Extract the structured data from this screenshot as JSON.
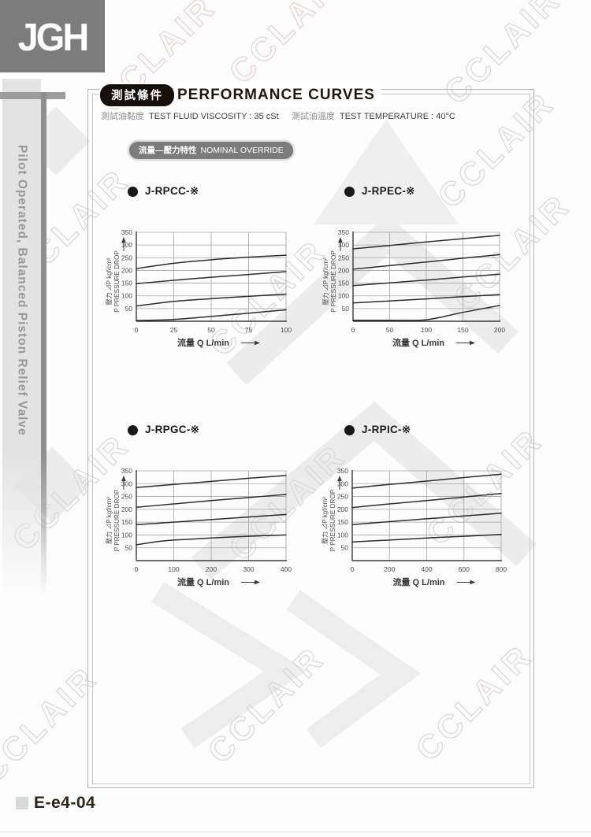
{
  "page": {
    "logo_text": "JGH",
    "sidebar_title": "Pilot Operated, Balanced Piston Relief Valve",
    "page_code": "E-e4-04",
    "watermark_text": "CCLAIR"
  },
  "header": {
    "badge": "測試條件",
    "title": "PERFORMANCE CURVES",
    "condition_left_zh": "測試油黏度",
    "condition_left_en": "TEST FLUID VISCOSITY : 35 cSt",
    "condition_right_zh": "測試油溫度",
    "condition_right_en": "TEST TEMPERATURE : 40°C",
    "section_badge_zh": "流量—壓力特性",
    "section_badge_en": "NOMINAL OVERRIDE"
  },
  "axes": {
    "xlabel": "流量 Q L/min",
    "ylabel_line1": "壓力 ⊿P kgf/cm²",
    "ylabel_line2": "P PRESSURE DROP"
  },
  "colors": {
    "grid": "#a3a3a3",
    "axis": "#3a3a3a",
    "curve": "#2c2c2c",
    "tick": "#4c4c4c",
    "axis_label": "#3a3a3a"
  },
  "chart_data": [
    {
      "type": "line",
      "title": "J-RPCC-※",
      "xlabel": "流量 Q L/min",
      "ylabel1": "壓力 ⊿P kgf/cm²",
      "ylabel2": "P PRESSURE DROP",
      "xlim": [
        0,
        100
      ],
      "ylim": [
        0,
        350
      ],
      "x_ticks": [
        0,
        25,
        50,
        75,
        100
      ],
      "y_ticks": [
        50,
        100,
        150,
        200,
        250,
        300,
        350
      ],
      "series": [
        {
          "name": "curve-1",
          "x": [
            0,
            25,
            50,
            75,
            100
          ],
          "y": [
            207,
            228,
            242,
            252,
            260
          ]
        },
        {
          "name": "curve-2",
          "x": [
            0,
            25,
            50,
            75,
            100
          ],
          "y": [
            148,
            161,
            173,
            184,
            195
          ]
        },
        {
          "name": "curve-3",
          "x": [
            0,
            25,
            50,
            75,
            100
          ],
          "y": [
            60,
            78,
            89,
            98,
            107
          ]
        },
        {
          "name": "curve-4",
          "x": [
            0,
            25,
            50,
            75,
            100
          ],
          "y": [
            3,
            7,
            19,
            32,
            45
          ]
        }
      ]
    },
    {
      "type": "line",
      "title": "J-RPEC-※",
      "xlabel": "流量 Q L/min",
      "ylabel1": "壓力 ⊿P kgf/cm²",
      "ylabel2": "P PRESSURE DROP",
      "xlim": [
        0,
        200
      ],
      "ylim": [
        0,
        350
      ],
      "x_ticks": [
        0,
        50,
        100,
        150,
        200
      ],
      "y_ticks": [
        50,
        100,
        150,
        200,
        250,
        300,
        350
      ],
      "series": [
        {
          "name": "curve-1",
          "x": [
            0,
            50,
            100,
            150,
            200
          ],
          "y": [
            285,
            298,
            312,
            325,
            338
          ]
        },
        {
          "name": "curve-2",
          "x": [
            0,
            50,
            100,
            150,
            200
          ],
          "y": [
            205,
            219,
            233,
            248,
            262
          ]
        },
        {
          "name": "curve-3",
          "x": [
            0,
            50,
            100,
            150,
            200
          ],
          "y": [
            140,
            151,
            162,
            174,
            185
          ]
        },
        {
          "name": "curve-4",
          "x": [
            0,
            50,
            100,
            150,
            200
          ],
          "y": [
            72,
            80,
            88,
            97,
            105
          ]
        },
        {
          "name": "curve-5",
          "x": [
            0,
            50,
            100,
            150,
            200
          ],
          "y": [
            4,
            4,
            6,
            35,
            62
          ]
        }
      ]
    },
    {
      "type": "line",
      "title": "J-RPGC-※",
      "xlabel": "流量 Q L/min",
      "ylabel1": "壓力 ⊿P kgf/cm²",
      "ylabel2": "P PRESSURE DROP",
      "xlim": [
        0,
        400
      ],
      "ylim": [
        0,
        350
      ],
      "x_ticks": [
        0,
        100,
        200,
        300,
        400
      ],
      "y_ticks": [
        50,
        100,
        150,
        200,
        250,
        300,
        350
      ],
      "series": [
        {
          "name": "curve-1",
          "x": [
            0,
            100,
            200,
            300,
            400
          ],
          "y": [
            285,
            297,
            309,
            321,
            332
          ]
        },
        {
          "name": "curve-2",
          "x": [
            0,
            100,
            200,
            300,
            400
          ],
          "y": [
            208,
            221,
            234,
            246,
            258
          ]
        },
        {
          "name": "curve-3",
          "x": [
            0,
            100,
            200,
            300,
            400
          ],
          "y": [
            140,
            150,
            160,
            170,
            180
          ]
        },
        {
          "name": "curve-4",
          "x": [
            0,
            50,
            100,
            200,
            300,
            400
          ],
          "y": [
            62,
            73,
            80,
            88,
            95,
            100
          ]
        }
      ]
    },
    {
      "type": "line",
      "title": "J-RPIC-※",
      "xlabel": "流量 Q L/min",
      "ylabel1": "壓力 ⊿P kgf/cm²",
      "ylabel2": "P PRESSURE DROP",
      "xlim": [
        0,
        800
      ],
      "ylim": [
        0,
        350
      ],
      "x_ticks": [
        0,
        200,
        400,
        600,
        800
      ],
      "y_ticks": [
        50,
        100,
        150,
        200,
        250,
        300,
        350
      ],
      "series": [
        {
          "name": "curve-1",
          "x": [
            0,
            200,
            400,
            600,
            800
          ],
          "y": [
            283,
            297,
            310,
            324,
            337
          ]
        },
        {
          "name": "curve-2",
          "x": [
            0,
            200,
            400,
            600,
            800
          ],
          "y": [
            207,
            221,
            234,
            248,
            262
          ]
        },
        {
          "name": "curve-3",
          "x": [
            0,
            200,
            400,
            600,
            800
          ],
          "y": [
            140,
            152,
            163,
            174,
            185
          ]
        },
        {
          "name": "curve-4",
          "x": [
            0,
            200,
            400,
            600,
            800
          ],
          "y": [
            73,
            80,
            88,
            95,
            102
          ]
        }
      ]
    }
  ]
}
